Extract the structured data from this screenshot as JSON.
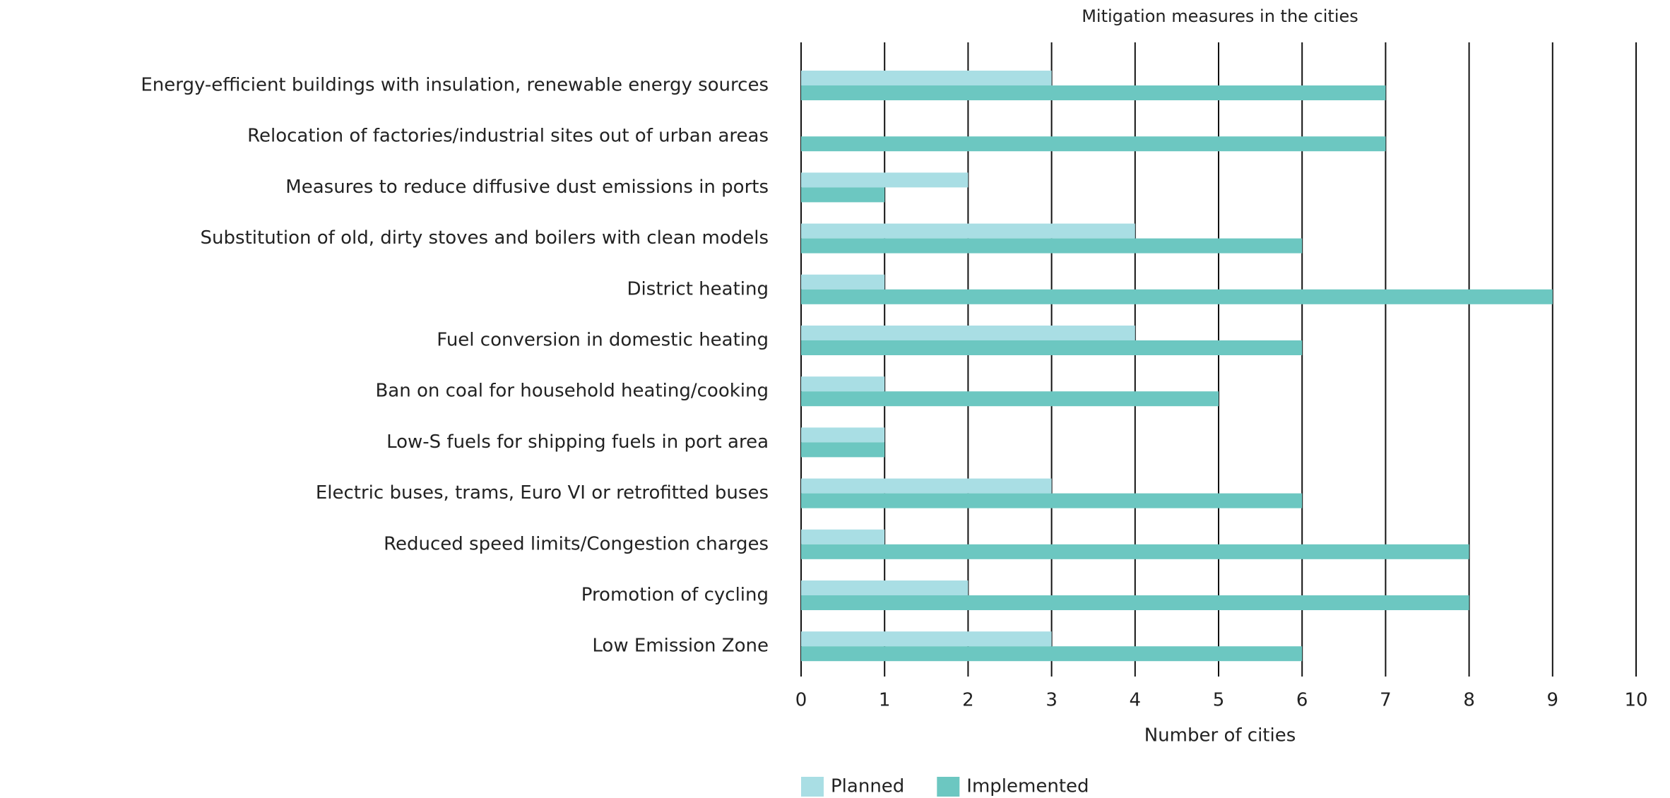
{
  "chart_data": {
    "type": "hbar",
    "title": "Mitigation measures in the cities",
    "xlabel": "Number of cities",
    "categories": [
      "Energy-efficient buildings with insulation, renewable energy sources",
      "Relocation of factories/industrial sites out of urban areas",
      "Measures to reduce diffusive dust emissions in ports",
      "Substitution of old, dirty stoves and boilers with clean models",
      "District heating",
      "Fuel conversion in domestic heating",
      "Ban on coal for household heating/cooking",
      "Low-S fuels for shipping fuels in port area",
      "Electric buses, trams, Euro VI or retrofitted buses",
      "Reduced speed limits/Congestion charges",
      "Promotion of cycling",
      "Low Emission Zone"
    ],
    "series": [
      {
        "name": "Planned",
        "color": "#a9dee4",
        "values": [
          3,
          0,
          2,
          4,
          1,
          4,
          1,
          1,
          3,
          1,
          2,
          3
        ]
      },
      {
        "name": "Implemented",
        "color": "#6cc7c1",
        "values": [
          7,
          7,
          1,
          6,
          9,
          6,
          5,
          1,
          6,
          8,
          8,
          6
        ]
      }
    ],
    "xlim": [
      0,
      10
    ],
    "xticks": [
      0,
      1,
      2,
      3,
      4,
      5,
      6,
      7,
      8,
      9,
      10
    ],
    "grid": true,
    "legend": "bottom"
  }
}
